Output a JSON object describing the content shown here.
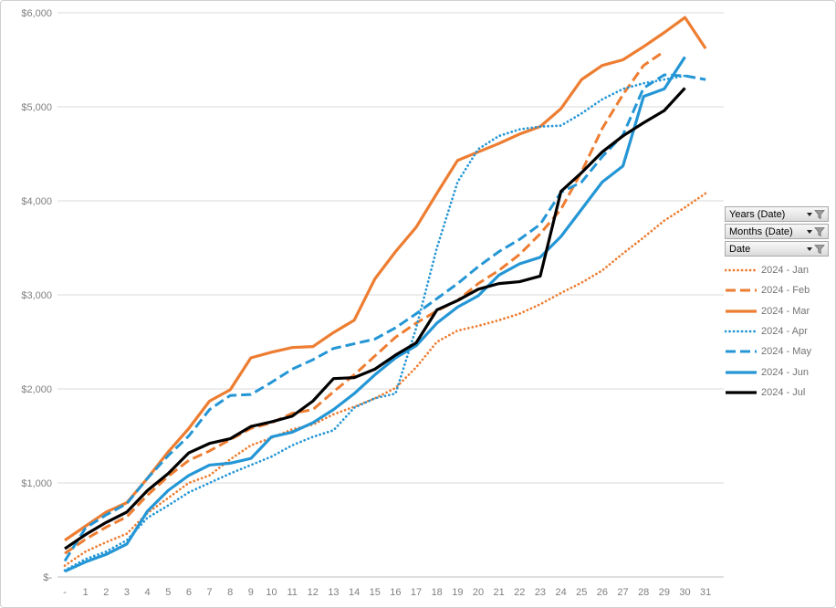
{
  "frame": {
    "background": "#FFFFFF",
    "border_color": "#D0D0D0"
  },
  "filter_buttons": [
    {
      "label": "Years (Date)",
      "icons": [
        "caret-down-icon",
        "funnel-icon"
      ]
    },
    {
      "label": "Months (Date)",
      "icons": [
        "caret-down-icon",
        "funnel-icon"
      ]
    },
    {
      "label": "Date",
      "icons": [
        "caret-down-icon",
        "funnel-icon"
      ]
    }
  ],
  "colors": {
    "orange": "#ED7D31",
    "blue": "#2496D5",
    "black": "#000000",
    "gridline": "#D9D9D9",
    "axis_line": "#BFBFBF",
    "tick_text": "#7F7F7F",
    "legend_text": "#737373"
  },
  "chart_data": {
    "type": "line",
    "title": "",
    "xlabel": "",
    "ylabel": "",
    "grid": true,
    "legend_position": "right",
    "ylim": [
      0,
      6000
    ],
    "y_ticks": [
      {
        "value": 0,
        "label": "$-"
      },
      {
        "value": 1000,
        "label": "$1,000"
      },
      {
        "value": 2000,
        "label": "$2,000"
      },
      {
        "value": 3000,
        "label": "$3,000"
      },
      {
        "value": 4000,
        "label": "$4,000"
      },
      {
        "value": 5000,
        "label": "$5,000"
      },
      {
        "value": 6000,
        "label": "$6,000"
      }
    ],
    "x_categories": [
      "-",
      "1",
      "2",
      "3",
      "4",
      "5",
      "6",
      "7",
      "8",
      "9",
      "10",
      "11",
      "12",
      "13",
      "14",
      "15",
      "16",
      "17",
      "18",
      "19",
      "20",
      "21",
      "22",
      "23",
      "24",
      "25",
      "26",
      "27",
      "28",
      "29",
      "30",
      "31"
    ],
    "series": [
      {
        "name": "2024 - Jan",
        "color": "#ED7D31",
        "style": "dotted",
        "values": [
          120,
          270,
          370,
          460,
          680,
          840,
          1000,
          1080,
          1250,
          1400,
          1480,
          1570,
          1620,
          1730,
          1810,
          1900,
          2010,
          2230,
          2500,
          2620,
          2670,
          2730,
          2800,
          2900,
          3020,
          3130,
          3260,
          3440,
          3610,
          3790,
          3930,
          4080
        ]
      },
      {
        "name": "2024 - Feb",
        "color": "#ED7D31",
        "style": "dashed",
        "values": [
          250,
          400,
          530,
          640,
          870,
          1070,
          1240,
          1340,
          1460,
          1580,
          1640,
          1740,
          1780,
          1970,
          2150,
          2350,
          2550,
          2700,
          2830,
          2940,
          3120,
          3260,
          3430,
          3650,
          3910,
          4310,
          4770,
          5130,
          5440,
          5590,
          null,
          null
        ]
      },
      {
        "name": "2024 - Mar",
        "color": "#ED7D31",
        "style": "solid",
        "values": [
          390,
          540,
          690,
          790,
          1050,
          1330,
          1580,
          1870,
          1990,
          2330,
          2390,
          2440,
          2450,
          2600,
          2730,
          3170,
          3460,
          3720,
          4080,
          4430,
          4520,
          4610,
          4710,
          4790,
          4980,
          5290,
          5440,
          5500,
          5640,
          5790,
          5950,
          5620
        ]
      },
      {
        "name": "2024 - Apr",
        "color": "#2496D5",
        "style": "dotted",
        "values": [
          70,
          190,
          270,
          390,
          630,
          760,
          900,
          1000,
          1100,
          1190,
          1280,
          1400,
          1490,
          1560,
          1800,
          1900,
          1950,
          2650,
          3500,
          4200,
          4550,
          4690,
          4760,
          4790,
          4800,
          4930,
          5080,
          5190,
          5250,
          5290,
          5330,
          null
        ]
      },
      {
        "name": "2024 - May",
        "color": "#2496D5",
        "style": "dashed",
        "values": [
          170,
          520,
          660,
          780,
          1050,
          1290,
          1500,
          1780,
          1930,
          1940,
          2070,
          2210,
          2310,
          2430,
          2480,
          2530,
          2650,
          2800,
          2960,
          3120,
          3300,
          3460,
          3590,
          3750,
          4090,
          4200,
          4470,
          4700,
          5200,
          5340,
          5330,
          5290
        ]
      },
      {
        "name": "2024 - Jun",
        "color": "#2496D5",
        "style": "solid",
        "values": [
          60,
          160,
          240,
          350,
          700,
          920,
          1080,
          1190,
          1210,
          1260,
          1490,
          1540,
          1640,
          1780,
          1950,
          2150,
          2330,
          2460,
          2700,
          2870,
          2990,
          3210,
          3330,
          3400,
          3620,
          3910,
          4200,
          4370,
          5110,
          5190,
          5530,
          null
        ]
      },
      {
        "name": "2024 - Jul",
        "color": "#000000",
        "style": "solid",
        "values": [
          300,
          450,
          580,
          690,
          920,
          1100,
          1320,
          1420,
          1470,
          1600,
          1650,
          1710,
          1870,
          2110,
          2120,
          2210,
          2360,
          2490,
          2840,
          2940,
          3060,
          3120,
          3140,
          3200,
          4100,
          4300,
          4520,
          4690,
          4830,
          4960,
          5200,
          null
        ]
      }
    ]
  }
}
